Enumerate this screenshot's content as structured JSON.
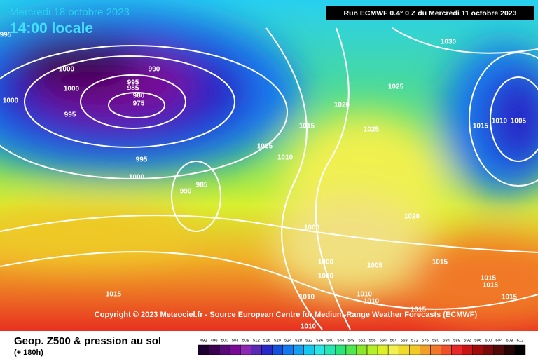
{
  "header": {
    "date": "Mercredi 18 octobre 2023",
    "time": "14:00 locale",
    "run": "Run ECMWF 0.4° 0 Z du Mercredi 11 octobre 2023"
  },
  "copyright": "Copyright © 2023 Meteociel.fr - Source European Centre for Medium-Range Weather Forecasts (ECMWF)",
  "isobar_labels": [
    995,
    990,
    1000,
    1000,
    1000,
    995,
    985,
    980,
    975,
    995,
    995,
    1000,
    990,
    985,
    1005,
    1010,
    1015,
    1020,
    1025,
    1025,
    1030,
    1015,
    1010,
    1005,
    1000,
    1000,
    1000,
    1005,
    1020,
    1015,
    1015,
    1010,
    1010,
    1010,
    1015,
    1010,
    1015,
    1015,
    1015
  ],
  "legend": {
    "title": "Geop. Z500 & pression au sol",
    "lead": "(+ 180h)",
    "scale": [
      492,
      496,
      500,
      504,
      508,
      512,
      516,
      520,
      524,
      528,
      532,
      536,
      540,
      544,
      548,
      552,
      556,
      560,
      564,
      568,
      572,
      576,
      580,
      584,
      588,
      592,
      596,
      600,
      604,
      608,
      612
    ],
    "colors": [
      "#1e0030",
      "#3c0050",
      "#5a0a78",
      "#780a96",
      "#8c28b4",
      "#5a28b4",
      "#2828c8",
      "#1450dc",
      "#1478f0",
      "#14a0f0",
      "#14c8f0",
      "#28e6e6",
      "#28e6b4",
      "#28e678",
      "#50e650",
      "#8ce628",
      "#b4f028",
      "#dcf028",
      "#f0f050",
      "#f0dc28",
      "#f0c828",
      "#f0a028",
      "#f07828",
      "#f05028",
      "#e62828",
      "#c81414",
      "#a00a0a",
      "#780a0a",
      "#500a0a",
      "#280505",
      "#000000"
    ]
  }
}
